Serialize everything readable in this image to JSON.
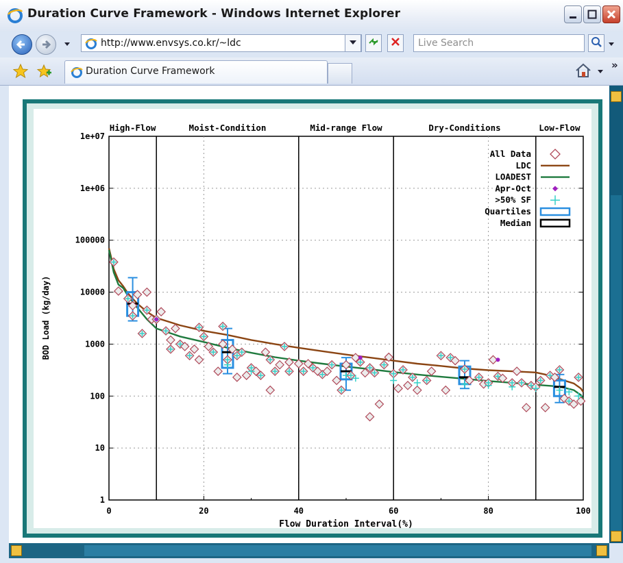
{
  "window": {
    "title": "Duration Curve Framework - Windows Internet Explorer",
    "tab_title": "Duration Curve Framework"
  },
  "address": {
    "url": "http://www.envsys.co.kr/~ldc"
  },
  "search": {
    "placeholder": "Live Search"
  },
  "toolbar": {
    "more_label": "»"
  },
  "colors": {
    "ldc": "#8B4513",
    "loadest": "#1f7a3e",
    "all_data": "#b04a5a",
    "sf": "#35d0c8",
    "quartiles": "#2a8fe0",
    "apr_oct": "#a020c0",
    "frame": "#197878"
  },
  "chart_data": {
    "type": "scatter",
    "xlabel": "Flow Duration Interval(%)",
    "ylabel": "BOD Load (kg/day)",
    "xlim": [
      0,
      100
    ],
    "ylim": [
      1,
      10000000
    ],
    "yscale": "log",
    "x_ticks": [
      "0",
      "20",
      "40",
      "60",
      "80",
      "100"
    ],
    "y_ticks": [
      "1",
      "10",
      "100",
      "1000",
      "10000",
      "100000",
      "1e+06",
      "1e+07"
    ],
    "region_dividers": [
      10,
      40,
      60,
      90
    ],
    "regions": [
      "High-Flow",
      "Moist-Condition",
      "Mid-range Flow",
      "Dry-Conditions",
      "Low-Flow"
    ],
    "legend": [
      "All Data",
      "LDC",
      "LOADEST",
      "Apr-Oct",
      ">50% SF",
      "Quartiles",
      "Median"
    ],
    "legend_position": "top-right",
    "grid": true,
    "ldc": {
      "x": [
        0,
        0.5,
        1,
        2,
        3,
        4,
        5,
        6,
        8,
        10,
        15,
        20,
        25,
        30,
        35,
        40,
        45,
        50,
        55,
        60,
        65,
        70,
        75,
        80,
        85,
        90,
        92,
        94,
        96,
        98,
        99.5,
        100
      ],
      "y": [
        70000,
        45000,
        28000,
        17000,
        13000,
        9500,
        7500,
        6000,
        4200,
        3200,
        2300,
        1800,
        1500,
        1200,
        1000,
        850,
        730,
        630,
        550,
        480,
        420,
        380,
        340,
        315,
        300,
        285,
        260,
        230,
        200,
        175,
        140,
        120
      ]
    },
    "loadest": {
      "x": [
        0,
        0.5,
        1,
        2,
        3,
        4,
        5,
        6,
        8,
        10,
        15,
        20,
        25,
        30,
        35,
        40,
        45,
        50,
        55,
        60,
        65,
        70,
        75,
        80,
        85,
        90,
        92,
        94,
        96,
        98,
        99.5,
        100
      ],
      "y": [
        65000,
        40000,
        24000,
        14000,
        12000,
        8500,
        6500,
        5000,
        3000,
        2000,
        1400,
        1100,
        850,
        680,
        560,
        480,
        420,
        370,
        330,
        290,
        260,
        235,
        215,
        195,
        180,
        165,
        160,
        155,
        145,
        130,
        105,
        90
      ]
    },
    "all_data": {
      "x": [
        1,
        2,
        4,
        5,
        5,
        6,
        7,
        8,
        8,
        9,
        10,
        11,
        12,
        13,
        13,
        14,
        15,
        16,
        17,
        18,
        19,
        19,
        20,
        21,
        22,
        23,
        24,
        24,
        25,
        26,
        27,
        27,
        28,
        29,
        30,
        31,
        32,
        33,
        34,
        34,
        35,
        36,
        37,
        38,
        38,
        40,
        41,
        42,
        43,
        44,
        45,
        46,
        47,
        48,
        49,
        50,
        51,
        52,
        53,
        54,
        55,
        55,
        56,
        57,
        58,
        59,
        60,
        61,
        62,
        63,
        64,
        65,
        67,
        68,
        70,
        71,
        72,
        73,
        75,
        76,
        78,
        79,
        80,
        81,
        82,
        83,
        85,
        86,
        87,
        88,
        89,
        90,
        91,
        92,
        93,
        94,
        95,
        96,
        97,
        98,
        99,
        99.5
      ],
      "y": [
        38000,
        10500,
        7500,
        5500,
        3500,
        9000,
        1600,
        10000,
        4500,
        3000,
        3000,
        4200,
        1800,
        1200,
        800,
        2000,
        1000,
        900,
        600,
        800,
        2100,
        500,
        1400,
        900,
        700,
        300,
        2200,
        1000,
        500,
        800,
        600,
        230,
        700,
        250,
        350,
        300,
        250,
        700,
        500,
        130,
        300,
        400,
        900,
        450,
        300,
        420,
        300,
        420,
        350,
        300,
        260,
        300,
        400,
        200,
        130,
        400,
        250,
        550,
        450,
        280,
        350,
        40,
        280,
        70,
        400,
        560,
        270,
        140,
        320,
        160,
        230,
        130,
        200,
        300,
        600,
        130,
        550,
        480,
        330,
        200,
        230,
        170,
        180,
        500,
        240,
        220,
        180,
        300,
        180,
        60,
        160,
        150,
        200,
        60,
        250,
        230,
        320,
        90,
        80,
        70,
        230,
        80
      ]
    },
    "sf_points": {
      "x": [
        25,
        30,
        50,
        52,
        60,
        65,
        75,
        80,
        85,
        90,
        95,
        97,
        99
      ],
      "y": [
        400,
        300,
        250,
        220,
        200,
        180,
        170,
        160,
        150,
        140,
        130,
        120,
        100
      ]
    },
    "apr_oct": {
      "x": [
        10,
        53,
        82
      ],
      "y": [
        3000,
        550,
        500
      ]
    },
    "boxes": [
      {
        "x": 5,
        "min": 2800,
        "q1": 3500,
        "median": 6000,
        "q3": 10000,
        "max": 19000
      },
      {
        "x": 25,
        "min": 270,
        "q1": 350,
        "median": 700,
        "q3": 1200,
        "max": 2000
      },
      {
        "x": 50,
        "min": 130,
        "q1": 210,
        "median": 300,
        "q3": 420,
        "max": 550
      },
      {
        "x": 75,
        "min": 140,
        "q1": 170,
        "median": 230,
        "q3": 370,
        "max": 480
      },
      {
        "x": 95,
        "min": 75,
        "q1": 100,
        "median": 150,
        "q3": 200,
        "max": 260
      }
    ]
  }
}
